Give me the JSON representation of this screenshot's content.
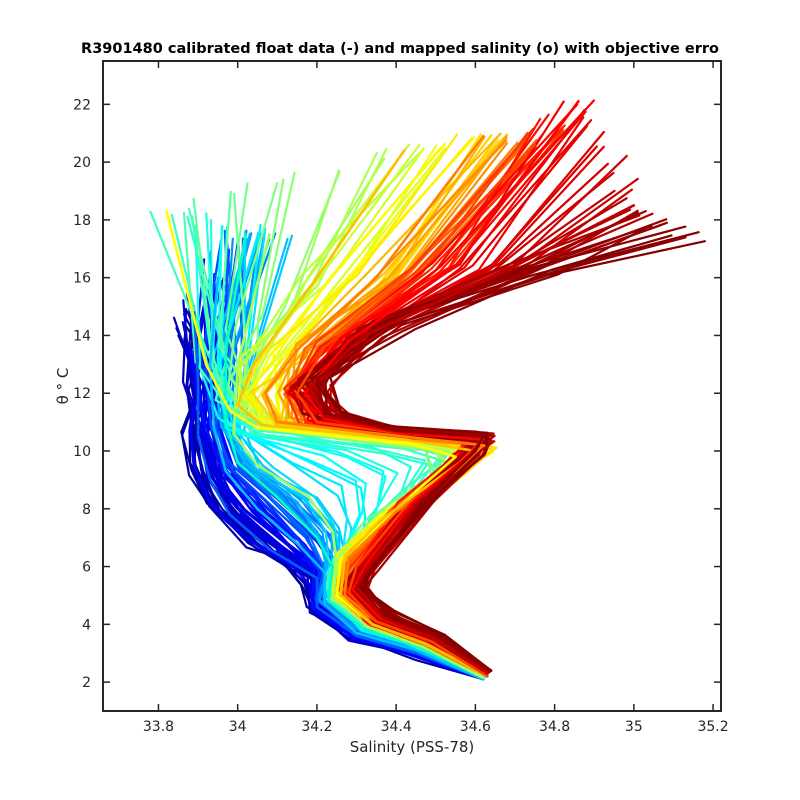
{
  "chart_data": {
    "type": "line",
    "title": "R3901480 calibrated float data (-) and mapped salinity (o) with objective erro",
    "xlabel": "Salinity (PSS-78)",
    "ylabel": "θ ° C",
    "xlim": [
      33.66,
      35.22
    ],
    "ylim": [
      1.0,
      23.5
    ],
    "xticks": [
      33.8,
      34.0,
      34.2,
      34.4,
      34.6,
      34.8,
      35.0,
      35.2
    ],
    "xtick_labels": [
      "33.8",
      "34",
      "34.2",
      "34.4",
      "34.6",
      "34.8",
      "35",
      "35.2"
    ],
    "yticks": [
      2,
      4,
      6,
      8,
      10,
      12,
      14,
      16,
      18,
      20,
      22
    ],
    "ytick_labels": [
      "2",
      "4",
      "6",
      "8",
      "10",
      "12",
      "14",
      "16",
      "18",
      "20",
      "22"
    ],
    "colormap": "jet",
    "colormap_stops": [
      "#00008f",
      "#0000ff",
      "#00ffff",
      "#ffff00",
      "#ff0000",
      "#800000"
    ],
    "profile_count": 160,
    "grid": false,
    "profiles": [
      {
        "id": "blue",
        "color": "#0000ff",
        "points": [
          [
            34.62,
            2.1
          ],
          [
            34.45,
            2.9
          ],
          [
            34.3,
            3.5
          ],
          [
            34.2,
            4.4
          ],
          [
            34.18,
            5.4
          ],
          [
            34.14,
            6.0
          ],
          [
            34.02,
            7.0
          ],
          [
            33.93,
            8.2
          ],
          [
            33.89,
            9.5
          ],
          [
            33.88,
            10.8
          ],
          [
            33.9,
            12.0
          ],
          [
            33.88,
            13.5
          ]
        ]
      },
      {
        "id": "blue-light",
        "color": "#0060ff",
        "points": [
          [
            34.62,
            2.1
          ],
          [
            34.45,
            3.0
          ],
          [
            34.3,
            3.6
          ],
          [
            34.2,
            4.6
          ],
          [
            34.2,
            5.6
          ],
          [
            34.08,
            6.6
          ],
          [
            33.98,
            7.8
          ],
          [
            33.93,
            9.0
          ],
          [
            33.9,
            10.5
          ],
          [
            33.9,
            12.5
          ],
          [
            33.89,
            14.8
          ]
        ]
      },
      {
        "id": "cyan",
        "color": "#00c0ff",
        "points": [
          [
            34.62,
            2.1
          ],
          [
            34.45,
            3.1
          ],
          [
            34.3,
            3.7
          ],
          [
            34.22,
            4.7
          ],
          [
            34.22,
            5.8
          ],
          [
            34.15,
            6.8
          ],
          [
            34.05,
            8.0
          ],
          [
            33.97,
            9.3
          ],
          [
            33.94,
            10.8
          ],
          [
            33.93,
            13.0
          ],
          [
            33.95,
            16.0
          ]
        ]
      },
      {
        "id": "cyan-green",
        "color": "#00ffc0",
        "points": [
          [
            34.62,
            2.15
          ],
          [
            34.46,
            3.2
          ],
          [
            34.32,
            3.8
          ],
          [
            34.23,
            4.8
          ],
          [
            34.24,
            6.0
          ],
          [
            34.2,
            7.0
          ],
          [
            34.1,
            8.4
          ],
          [
            34.0,
            9.6
          ],
          [
            33.97,
            11.0
          ],
          [
            33.97,
            13.5
          ],
          [
            34.02,
            17.5
          ]
        ]
      },
      {
        "id": "green-yellow",
        "color": "#a0ff60",
        "points": [
          [
            34.62,
            2.15
          ],
          [
            34.47,
            3.2
          ],
          [
            34.33,
            3.9
          ],
          [
            34.24,
            4.9
          ],
          [
            34.25,
            6.1
          ],
          [
            34.24,
            7.2
          ],
          [
            34.18,
            8.4
          ],
          [
            34.05,
            9.5
          ],
          [
            33.99,
            10.6
          ],
          [
            34.0,
            13.0
          ],
          [
            34.08,
            17.5
          ]
        ]
      },
      {
        "id": "yellow",
        "color": "#ffff00",
        "points": [
          [
            34.63,
            2.2
          ],
          [
            34.48,
            3.3
          ],
          [
            34.34,
            4.0
          ],
          [
            34.25,
            5.0
          ],
          [
            34.26,
            6.2
          ],
          [
            34.34,
            7.2
          ],
          [
            34.45,
            8.6
          ],
          [
            34.55,
            9.8
          ],
          [
            34.45,
            10.2
          ],
          [
            34.05,
            10.8
          ],
          [
            33.98,
            11.4
          ],
          [
            33.92,
            13.0
          ],
          [
            33.82,
            18.3
          ]
        ]
      },
      {
        "id": "orange-yellow",
        "color": "#ffc000",
        "points": [
          [
            34.63,
            2.2
          ],
          [
            34.48,
            3.3
          ],
          [
            34.34,
            4.0
          ],
          [
            34.26,
            5.0
          ],
          [
            34.27,
            6.3
          ],
          [
            34.36,
            7.6
          ],
          [
            34.5,
            9.0
          ],
          [
            34.6,
            10.0
          ],
          [
            34.42,
            10.4
          ],
          [
            34.06,
            10.9
          ],
          [
            34.0,
            11.6
          ],
          [
            34.04,
            13.0
          ],
          [
            34.2,
            16.0
          ],
          [
            34.42,
            20.4
          ]
        ]
      },
      {
        "id": "orange",
        "color": "#ff8000",
        "points": [
          [
            34.63,
            2.2
          ],
          [
            34.49,
            3.4
          ],
          [
            34.35,
            4.1
          ],
          [
            34.27,
            5.0
          ],
          [
            34.28,
            6.3
          ],
          [
            34.4,
            7.9
          ],
          [
            34.55,
            9.3
          ],
          [
            34.62,
            10.2
          ],
          [
            34.42,
            10.5
          ],
          [
            34.1,
            11.0
          ],
          [
            34.07,
            12.0
          ],
          [
            34.15,
            13.5
          ],
          [
            34.35,
            16.0
          ],
          [
            34.62,
            20.9
          ]
        ]
      },
      {
        "id": "red-orange",
        "color": "#ff4000",
        "points": [
          [
            34.63,
            2.2
          ],
          [
            34.49,
            3.4
          ],
          [
            34.35,
            4.1
          ],
          [
            34.28,
            5.1
          ],
          [
            34.3,
            6.0
          ],
          [
            34.42,
            8.0
          ],
          [
            34.56,
            9.6
          ],
          [
            34.62,
            10.4
          ],
          [
            34.42,
            10.6
          ],
          [
            34.2,
            11.0
          ],
          [
            34.15,
            12.0
          ],
          [
            34.22,
            13.6
          ],
          [
            34.45,
            16.2
          ],
          [
            34.75,
            20.6
          ]
        ]
      },
      {
        "id": "red",
        "color": "#ff0000",
        "points": [
          [
            34.63,
            2.3
          ],
          [
            34.5,
            3.5
          ],
          [
            34.36,
            4.2
          ],
          [
            34.29,
            5.2
          ],
          [
            34.32,
            6.0
          ],
          [
            34.44,
            8.2
          ],
          [
            34.58,
            9.8
          ],
          [
            34.62,
            10.4
          ],
          [
            34.42,
            10.6
          ],
          [
            34.22,
            11.1
          ],
          [
            34.17,
            12.0
          ],
          [
            34.28,
            13.8
          ],
          [
            34.55,
            16.4
          ],
          [
            34.86,
            22.1
          ]
        ]
      },
      {
        "id": "dark-red",
        "color": "#c00000",
        "points": [
          [
            34.63,
            2.3
          ],
          [
            34.5,
            3.5
          ],
          [
            34.37,
            4.2
          ],
          [
            34.3,
            5.3
          ],
          [
            34.33,
            6.0
          ],
          [
            34.46,
            8.3
          ],
          [
            34.59,
            9.9
          ],
          [
            34.62,
            10.5
          ],
          [
            34.4,
            10.7
          ],
          [
            34.22,
            11.2
          ],
          [
            34.18,
            12.2
          ],
          [
            34.32,
            14.0
          ],
          [
            34.7,
            16.4
          ],
          [
            35.0,
            18.5
          ]
        ]
      },
      {
        "id": "maroon",
        "color": "#900000",
        "points": [
          [
            34.64,
            2.4
          ],
          [
            34.51,
            3.6
          ],
          [
            34.38,
            4.3
          ],
          [
            34.31,
            5.4
          ],
          [
            34.34,
            6.0
          ],
          [
            34.48,
            8.4
          ],
          [
            34.6,
            10.0
          ],
          [
            34.62,
            10.5
          ],
          [
            34.4,
            10.7
          ],
          [
            34.22,
            11.3
          ],
          [
            34.2,
            12.5
          ],
          [
            34.4,
            14.4
          ],
          [
            34.8,
            16.2
          ],
          [
            35.13,
            17.4
          ]
        ]
      }
    ]
  }
}
